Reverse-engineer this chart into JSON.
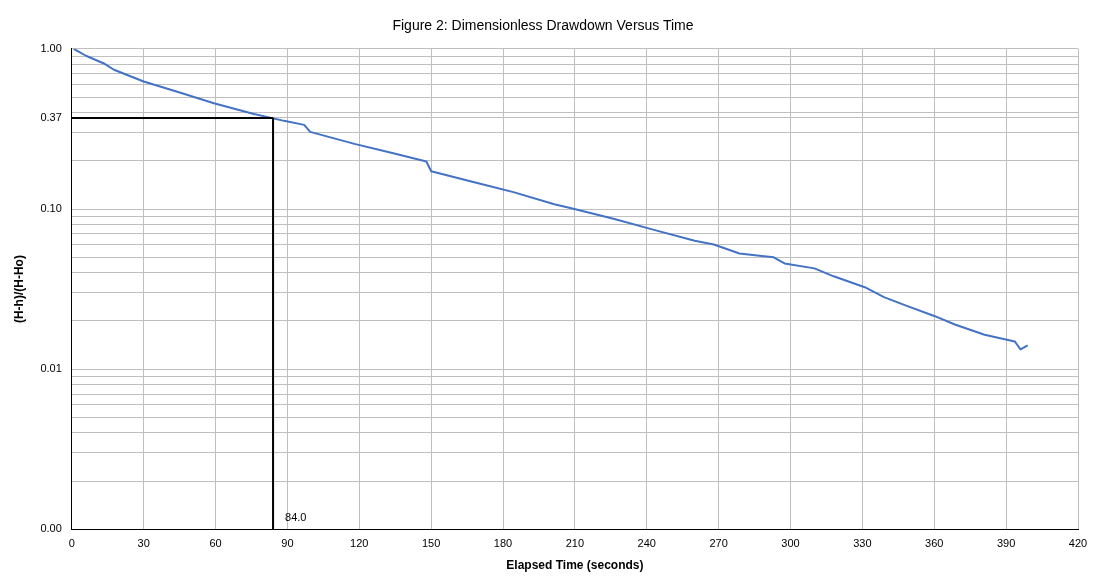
{
  "chart_data": {
    "type": "line",
    "title": "Figure 2: Dimensionless Drawdown Versus Time",
    "xlabel": "Elapsed Time (seconds)",
    "ylabel": "(H-h)/(H-Ho)",
    "x": [
      0.8,
      5.9,
      13.4,
      17.6,
      30,
      44.7,
      59.3,
      76,
      88.6,
      97,
      99.5,
      118,
      134.6,
      148,
      150,
      168,
      184.7,
      201.4,
      209.8,
      226.5,
      243,
      260,
      268,
      278.7,
      293,
      297.5,
      310,
      318,
      331,
      339,
      347.7,
      360,
      368.6,
      381,
      393.6,
      396,
      399
    ],
    "series": [
      {
        "color": "#4472c4",
        "values": [
          1,
          0.905,
          0.81,
          0.74,
          0.625,
          0.535,
          0.457,
          0.392,
          0.355,
          0.335,
          0.303,
          0.255,
          0.222,
          0.198,
          0.172,
          0.147,
          0.127,
          0.107,
          0.1,
          0.0867,
          0.0741,
          0.0634,
          0.06,
          0.0527,
          0.0499,
          0.0457,
          0.0426,
          0.038,
          0.0325,
          0.0282,
          0.0251,
          0.0215,
          0.019,
          0.0164,
          0.0149,
          0.0133,
          0.0141
        ]
      }
    ],
    "xlim": [
      0,
      420
    ],
    "xticks": [
      0,
      30,
      60,
      90,
      120,
      150,
      180,
      210,
      240,
      270,
      300,
      330,
      360,
      390,
      420
    ],
    "ylim": [
      0.001,
      1
    ],
    "log": "y",
    "yticks": [
      {
        "value": 0.001,
        "label": "0.00"
      },
      {
        "value": 0.002,
        "label": null
      },
      {
        "value": 0.003,
        "label": null
      },
      {
        "value": 0.004,
        "label": null
      },
      {
        "value": 0.005,
        "label": null
      },
      {
        "value": 0.006,
        "label": null
      },
      {
        "value": 0.007,
        "label": null
      },
      {
        "value": 0.008,
        "label": null
      },
      {
        "value": 0.009,
        "label": null
      },
      {
        "value": 0.01,
        "label": "0.01"
      },
      {
        "value": 0.02,
        "label": null
      },
      {
        "value": 0.03,
        "label": null
      },
      {
        "value": 0.04,
        "label": null
      },
      {
        "value": 0.05,
        "label": null
      },
      {
        "value": 0.06,
        "label": null
      },
      {
        "value": 0.07,
        "label": null
      },
      {
        "value": 0.08,
        "label": null
      },
      {
        "value": 0.09,
        "label": null
      },
      {
        "value": 0.1,
        "label": "0.10"
      },
      {
        "value": 0.2,
        "label": null
      },
      {
        "value": 0.3,
        "label": null
      },
      {
        "value": 0.37,
        "label": "0.37"
      },
      {
        "value": 0.4,
        "label": null
      },
      {
        "value": 0.5,
        "label": null
      },
      {
        "value": 0.6,
        "label": null
      },
      {
        "value": 0.7,
        "label": null
      },
      {
        "value": 0.8,
        "label": null
      },
      {
        "value": 0.9,
        "label": null
      },
      {
        "value": 1,
        "label": "1.00"
      }
    ],
    "grid": true,
    "legend": false,
    "marker": "none",
    "line_style": "solid",
    "ref_lines": [
      {
        "axis": "x",
        "value": 84,
        "label": "84.0",
        "color": "#000000"
      },
      {
        "axis": "y",
        "value": 0.37,
        "label": null,
        "color": "#000000"
      }
    ]
  }
}
